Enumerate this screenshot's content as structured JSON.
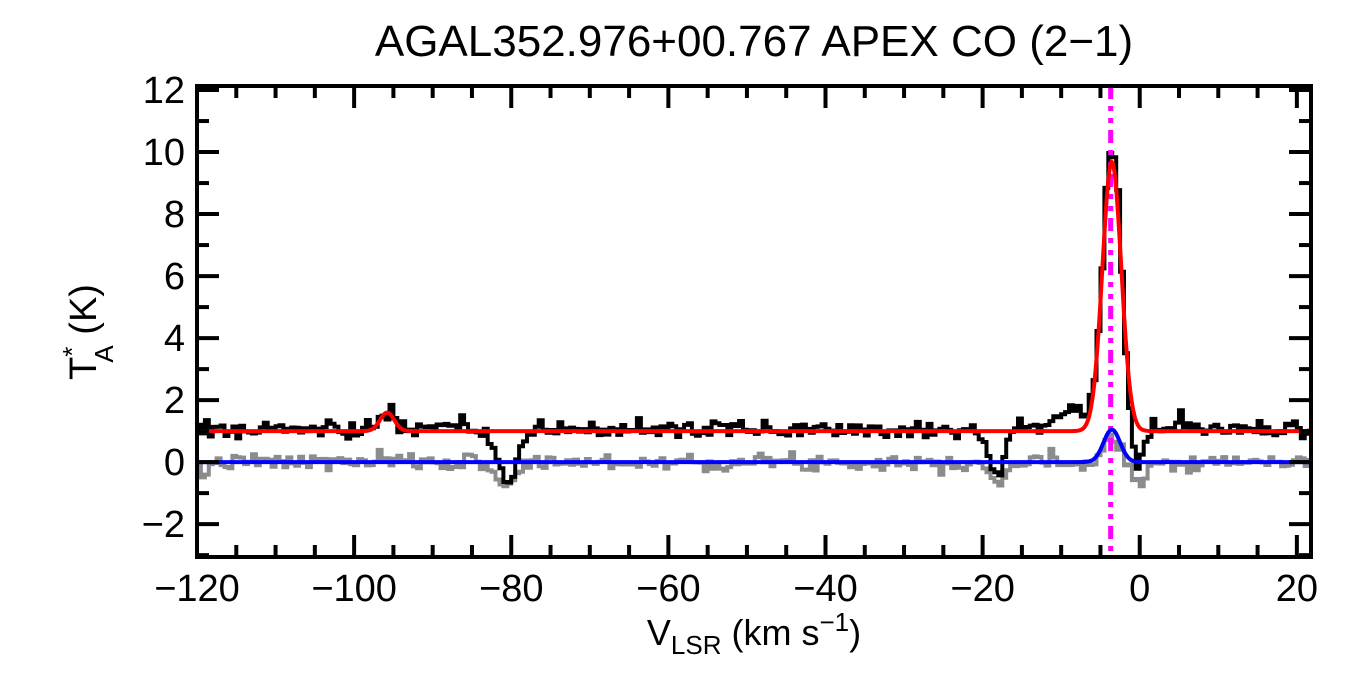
{
  "chart_data": {
    "type": "line",
    "title": "AGAL352.976+00.767  APEX CO (2−1)",
    "xlabel": {
      "main": "V",
      "sub": "LSR",
      "mid": " (km s",
      "sup": "−1",
      "end": ")"
    },
    "ylabel": {
      "main": "T",
      "sup": "*",
      "sub": "A",
      "end": " (K)"
    },
    "x_range": [
      -120,
      21.8
    ],
    "y_range": [
      -3.06,
      12.13
    ],
    "x_major_ticks": [
      -120,
      -100,
      -80,
      -60,
      -40,
      -20,
      0,
      20
    ],
    "x_minor_step": 5,
    "y_major_ticks": [
      -2,
      0,
      2,
      4,
      6,
      8,
      10,
      12
    ],
    "y_minor_step": 1,
    "grid": false,
    "legend": "none",
    "background_color": "#ffffff",
    "axis_color": "#000000",
    "channel_width_kms": 0.5,
    "noise_seed": 7,
    "series": [
      {
        "name": "residual-spectrum",
        "description": "gray baseline-subtracted spectrum around 0 K",
        "color": "#8c8c8c",
        "style": "histogram",
        "line_width": 4,
        "baseline": 0.0,
        "noise_sigma": 0.13,
        "features": [
          {
            "center": -119.4,
            "amp": -0.5,
            "sigma": 0.6
          },
          {
            "center": -80.6,
            "amp": -0.75,
            "sigma": 1.2
          },
          {
            "center": -18.0,
            "amp": -0.7,
            "sigma": 0.9
          },
          {
            "center": -3.5,
            "amp": 0.85,
            "sigma": 1.0
          },
          {
            "center": 0.2,
            "amp": -0.75,
            "sigma": 0.7
          }
        ]
      },
      {
        "name": "observed-spectrum",
        "description": "black APEX CO(2-1) spectrum, baseline near 1.05 K, main peak 10.1 K at -3.5 km/s",
        "color": "#000000",
        "style": "histogram",
        "line_width": 4,
        "baseline": 1.06,
        "noise_sigma": 0.14,
        "features": [
          {
            "center": -95.8,
            "amp": 0.55,
            "sigma": 0.9
          },
          {
            "center": -80.4,
            "amp": -1.65,
            "sigma": 1.3
          },
          {
            "center": -18.2,
            "amp": -1.35,
            "sigma": 1.0
          },
          {
            "center": -8.6,
            "amp": 0.6,
            "sigma": 2.6
          },
          {
            "center": -3.5,
            "amp": 9.1,
            "sigma": 1.15
          },
          {
            "center": -0.4,
            "amp": -1.55,
            "sigma": 0.7
          },
          {
            "center": 5.2,
            "amp": 0.6,
            "sigma": 0.4
          }
        ]
      },
      {
        "name": "gaussian-fit",
        "description": "red total fit: flat 1.0 K baseline + gaussians at -95.8 and -3.55 km/s (peak 9.7 K)",
        "color": "#ff0000",
        "style": "smooth",
        "line_width": 4,
        "baseline": 1.0,
        "noise_sigma": 0,
        "features": [
          {
            "center": -95.8,
            "amp": 0.6,
            "sigma": 0.9
          },
          {
            "center": -3.55,
            "amp": 8.7,
            "sigma": 1.2
          }
        ]
      },
      {
        "name": "fit-component",
        "description": "blue fit component on zero baseline, peak 1.05 K at -3.55 km/s",
        "color": "#0000ff",
        "style": "smooth",
        "line_width": 4,
        "baseline": 0.0,
        "noise_sigma": 0,
        "features": [
          {
            "center": -3.55,
            "amp": 1.05,
            "sigma": 1.05
          }
        ]
      }
    ],
    "vline": {
      "x": -3.7,
      "color": "#ff00ff",
      "style": "dash-dot-dot",
      "line_width": 5,
      "name": "systemic-velocity-marker"
    }
  }
}
